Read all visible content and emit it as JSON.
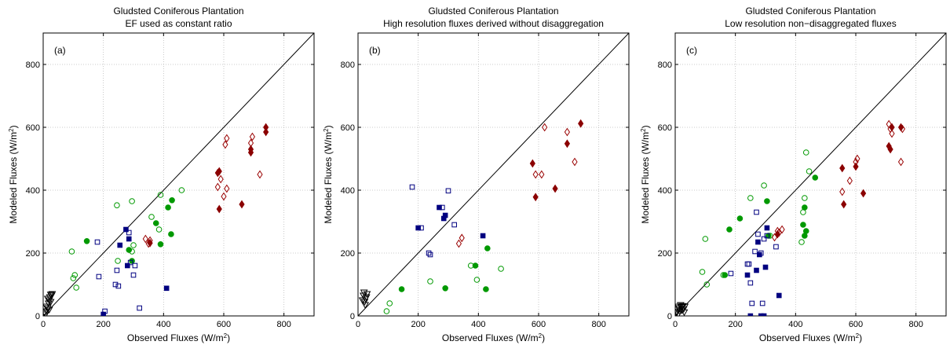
{
  "chart_data": [
    {
      "type": "scatter",
      "panel_label": "(a)",
      "title": "Gludsted Coniferous Plantation",
      "subtitle": "EF used as constant ratio",
      "xlabel": "Observed Fluxes (W/m²)",
      "ylabel": "Modeled Fluxes (W/m²)",
      "xlim": [
        0,
        900
      ],
      "ylim": [
        0,
        900
      ],
      "xticks": [
        0,
        200,
        400,
        600,
        800
      ],
      "yticks": [
        0,
        200,
        400,
        600,
        800
      ],
      "grid": true,
      "one_to_one_line": true,
      "series": [
        {
          "marker": "open-triangle",
          "color": "#000000",
          "points": [
            [
              8,
              5
            ],
            [
              12,
              15
            ],
            [
              15,
              25
            ],
            [
              18,
              40
            ],
            [
              20,
              50
            ],
            [
              22,
              60
            ],
            [
              25,
              68
            ],
            [
              15,
              55
            ],
            [
              10,
              30
            ],
            [
              28,
              65
            ],
            [
              30,
              70
            ],
            [
              20,
              20
            ],
            [
              5,
              10
            ],
            [
              25,
              45
            ]
          ]
        },
        {
          "marker": "open-circle",
          "color": "#009900",
          "points": [
            [
              95,
              205
            ],
            [
              100,
              120
            ],
            [
              105,
              130
            ],
            [
              110,
              90
            ],
            [
              245,
              352
            ],
            [
              248,
              175
            ],
            [
              295,
              365
            ],
            [
              300,
              225
            ],
            [
              360,
              315
            ],
            [
              385,
              275
            ],
            [
              390,
              385
            ],
            [
              460,
              400
            ],
            [
              295,
              205
            ]
          ]
        },
        {
          "marker": "filled-circle",
          "color": "#009900",
          "points": [
            [
              145,
              238
            ],
            [
              285,
              210
            ],
            [
              295,
              175
            ],
            [
              375,
              295
            ],
            [
              390,
              228
            ],
            [
              415,
              345
            ],
            [
              425,
              260
            ],
            [
              428,
              368
            ]
          ]
        },
        {
          "marker": "open-square",
          "color": "#000080",
          "points": [
            [
              180,
              235
            ],
            [
              185,
              125
            ],
            [
              205,
              15
            ],
            [
              240,
              100
            ],
            [
              245,
              145
            ],
            [
              250,
              95
            ],
            [
              285,
              265
            ],
            [
              290,
              170
            ],
            [
              300,
              130
            ],
            [
              305,
              160
            ],
            [
              320,
              25
            ]
          ]
        },
        {
          "marker": "filled-square",
          "color": "#000080",
          "points": [
            [
              200,
              5
            ],
            [
              255,
              225
            ],
            [
              275,
              275
            ],
            [
              285,
              245
            ],
            [
              280,
              160
            ],
            [
              410,
              88
            ]
          ]
        },
        {
          "marker": "open-diamond",
          "color": "#990000",
          "points": [
            [
              340,
              245
            ],
            [
              350,
              230
            ],
            [
              355,
              240
            ],
            [
              580,
              410
            ],
            [
              590,
              435
            ],
            [
              600,
              380
            ],
            [
              610,
              565
            ],
            [
              605,
              545
            ],
            [
              610,
              405
            ],
            [
              690,
              550
            ],
            [
              695,
              570
            ],
            [
              720,
              450
            ]
          ]
        },
        {
          "marker": "filled-diamond",
          "color": "#8b0000",
          "points": [
            [
              355,
              232
            ],
            [
              580,
              455
            ],
            [
              585,
              460
            ],
            [
              585,
              340
            ],
            [
              660,
              355
            ],
            [
              690,
              530
            ],
            [
              690,
              520
            ],
            [
              740,
              600
            ],
            [
              740,
              585
            ]
          ]
        }
      ]
    },
    {
      "type": "scatter",
      "panel_label": "(b)",
      "title": "Gludsted Coniferous Plantation",
      "subtitle": "High resolution fluxes derived without disaggregation",
      "xlabel": "Observed Fluxes (W/m²)",
      "ylabel": "Modeled Fluxes (W/m²)",
      "xlim": [
        0,
        900
      ],
      "ylim": [
        0,
        900
      ],
      "xticks": [
        0,
        200,
        400,
        600,
        800
      ],
      "yticks": [
        0,
        200,
        400,
        600,
        800
      ],
      "grid": true,
      "one_to_one_line": true,
      "series": [
        {
          "marker": "open-triangle",
          "color": "#000000",
          "points": [
            [
              20,
              75
            ],
            [
              25,
              55
            ],
            [
              22,
              45
            ],
            [
              28,
              60
            ],
            [
              18,
              65
            ],
            [
              30,
              70
            ],
            [
              15,
              50
            ],
            [
              24,
              35
            ]
          ]
        },
        {
          "marker": "open-circle",
          "color": "#009900",
          "points": [
            [
              95,
              15
            ],
            [
              105,
              40
            ],
            [
              240,
              110
            ],
            [
              375,
              160
            ],
            [
              395,
              115
            ],
            [
              475,
              150
            ]
          ]
        },
        {
          "marker": "filled-circle",
          "color": "#009900",
          "points": [
            [
              145,
              85
            ],
            [
              290,
              88
            ],
            [
              390,
              160
            ],
            [
              425,
              85
            ],
            [
              430,
              215
            ]
          ]
        },
        {
          "marker": "open-square",
          "color": "#000080",
          "points": [
            [
              180,
              410
            ],
            [
              210,
              280
            ],
            [
              235,
              200
            ],
            [
              240,
              195
            ],
            [
              280,
              345
            ],
            [
              300,
              398
            ],
            [
              320,
              290
            ]
          ]
        },
        {
          "marker": "filled-square",
          "color": "#000080",
          "points": [
            [
              200,
              280
            ],
            [
              270,
              345
            ],
            [
              285,
              310
            ],
            [
              290,
              320
            ],
            [
              415,
              255
            ]
          ]
        },
        {
          "marker": "open-diamond",
          "color": "#990000",
          "points": [
            [
              335,
              230
            ],
            [
              345,
              248
            ],
            [
              590,
              450
            ],
            [
              610,
              450
            ],
            [
              620,
              600
            ],
            [
              695,
              585
            ],
            [
              720,
              490
            ]
          ]
        },
        {
          "marker": "filled-diamond",
          "color": "#8b0000",
          "points": [
            [
              580,
              485
            ],
            [
              590,
              378
            ],
            [
              655,
              405
            ],
            [
              695,
              548
            ],
            [
              740,
              612
            ]
          ]
        }
      ]
    },
    {
      "type": "scatter",
      "panel_label": "(c)",
      "title": "Gludsted Coniferous Plantation",
      "subtitle": "Low resolution non−disaggregated fluxes",
      "xlabel": "Observed Fluxes (W/m²)",
      "ylabel": "Modeled Fluxes (W/m²)",
      "xlim": [
        0,
        900
      ],
      "ylim": [
        0,
        900
      ],
      "xticks": [
        0,
        200,
        400,
        600,
        800
      ],
      "yticks": [
        0,
        200,
        400,
        600,
        800
      ],
      "grid": true,
      "one_to_one_line": true,
      "series": [
        {
          "marker": "open-triangle",
          "color": "#000000",
          "points": [
            [
              5,
              10
            ],
            [
              8,
              20
            ],
            [
              10,
              30
            ],
            [
              12,
              25
            ],
            [
              15,
              15
            ],
            [
              18,
              35
            ],
            [
              20,
              28
            ],
            [
              22,
              18
            ],
            [
              25,
              32
            ],
            [
              28,
              22
            ],
            [
              30,
              12
            ],
            [
              32,
              30
            ],
            [
              10,
              5
            ]
          ]
        },
        {
          "marker": "open-circle",
          "color": "#009900",
          "points": [
            [
              90,
              140
            ],
            [
              100,
              245
            ],
            [
              105,
              100
            ],
            [
              160,
              130
            ],
            [
              250,
              375
            ],
            [
              295,
              415
            ],
            [
              315,
              255
            ],
            [
              420,
              235
            ],
            [
              425,
              330
            ],
            [
              430,
              375
            ],
            [
              435,
              520
            ],
            [
              445,
              460
            ]
          ]
        },
        {
          "marker": "filled-circle",
          "color": "#009900",
          "points": [
            [
              165,
              130
            ],
            [
              180,
              275
            ],
            [
              215,
              310
            ],
            [
              305,
              365
            ],
            [
              310,
              255
            ],
            [
              425,
              290
            ],
            [
              430,
              345
            ],
            [
              430,
              255
            ],
            [
              435,
              270
            ],
            [
              465,
              440
            ]
          ]
        },
        {
          "marker": "open-square",
          "color": "#000080",
          "points": [
            [
              185,
              135
            ],
            [
              240,
              165
            ],
            [
              245,
              165
            ],
            [
              250,
              105
            ],
            [
              255,
              40
            ],
            [
              265,
              205
            ],
            [
              270,
              330
            ],
            [
              275,
              260
            ],
            [
              285,
              200
            ],
            [
              290,
              40
            ],
            [
              295,
              245
            ],
            [
              305,
              255
            ],
            [
              335,
              220
            ]
          ]
        },
        {
          "marker": "filled-square",
          "color": "#000080",
          "points": [
            [
              240,
              130
            ],
            [
              250,
              0
            ],
            [
              270,
              145
            ],
            [
              275,
              235
            ],
            [
              280,
              195
            ],
            [
              285,
              0
            ],
            [
              295,
              0
            ],
            [
              300,
              155
            ],
            [
              305,
              280
            ],
            [
              345,
              65
            ]
          ]
        },
        {
          "marker": "open-diamond",
          "color": "#990000",
          "points": [
            [
              330,
              250
            ],
            [
              340,
              270
            ],
            [
              345,
              265
            ],
            [
              355,
              275
            ],
            [
              555,
              395
            ],
            [
              580,
              430
            ],
            [
              600,
              490
            ],
            [
              605,
              500
            ],
            [
              710,
              610
            ],
            [
              715,
              595
            ],
            [
              720,
              580
            ],
            [
              750,
              490
            ],
            [
              755,
              595
            ]
          ]
        },
        {
          "marker": "filled-diamond",
          "color": "#8b0000",
          "points": [
            [
              340,
              260
            ],
            [
              555,
              470
            ],
            [
              560,
              355
            ],
            [
              600,
              475
            ],
            [
              625,
              390
            ],
            [
              710,
              540
            ],
            [
              715,
              530
            ],
            [
              720,
              600
            ],
            [
              750,
              600
            ]
          ]
        }
      ]
    }
  ]
}
